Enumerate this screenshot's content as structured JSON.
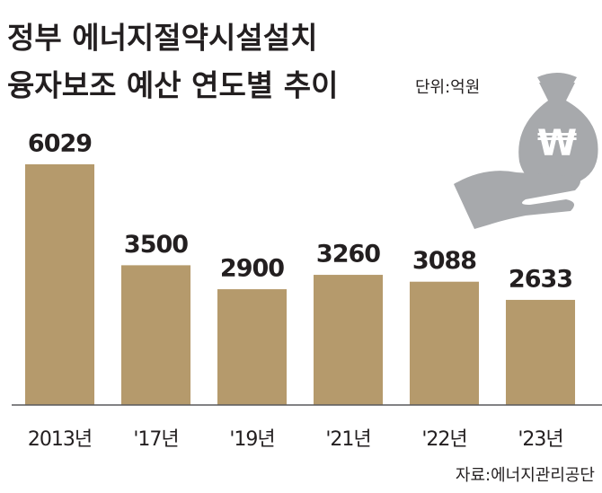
{
  "chart_data": {
    "type": "bar",
    "title": [
      "정부 에너지절약시설설치",
      "융자보조 예산 연도별 추이"
    ],
    "unit": "단위:억원",
    "source": "자료:에너지관리공단",
    "categories": [
      "2013년",
      "'17년",
      "'19년",
      "'21년",
      "'22년",
      "'23년"
    ],
    "values": [
      6029,
      3500,
      2900,
      3260,
      3088,
      2633
    ],
    "color": "#b59a6c",
    "ylim": [
      0,
      6500
    ]
  }
}
